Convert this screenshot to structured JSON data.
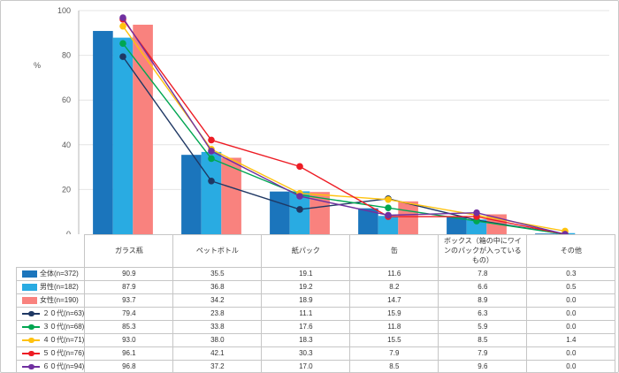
{
  "chart_data": {
    "type": "bar+line",
    "title": "",
    "ylabel": "%",
    "ylim": [
      0,
      100
    ],
    "yticks": [
      0,
      20,
      40,
      60,
      80,
      100
    ],
    "grid": true,
    "legend_position": "table-below-left",
    "categories": [
      "ガラス瓶",
      "ペットボトル",
      "紙パック",
      "缶",
      "ボックス（箱の中にワインのパックが入っているもの）",
      "その他"
    ],
    "bar_series": [
      {
        "name": "全体(n=372)",
        "color": "#1B75BC",
        "values": [
          90.9,
          35.5,
          19.1,
          11.6,
          7.8,
          0.3
        ]
      },
      {
        "name": "男性(n=182)",
        "color": "#29ABE2",
        "values": [
          87.9,
          36.8,
          19.2,
          8.2,
          6.6,
          0.5
        ]
      },
      {
        "name": "女性(n=190)",
        "color": "#F9827E",
        "values": [
          93.7,
          34.2,
          18.9,
          14.7,
          8.9,
          0.0
        ]
      }
    ],
    "line_series": [
      {
        "name": "２０代(n=63)",
        "color": "#1F3864",
        "values": [
          79.4,
          23.8,
          11.1,
          15.9,
          6.3,
          0.0
        ]
      },
      {
        "name": "３０代(n=68)",
        "color": "#00A651",
        "values": [
          85.3,
          33.8,
          17.6,
          11.8,
          5.9,
          0.0
        ]
      },
      {
        "name": "４０代(n=71)",
        "color": "#FFC20E",
        "values": [
          93.0,
          38.0,
          18.3,
          15.5,
          8.5,
          1.4
        ]
      },
      {
        "name": "５０代(n=76)",
        "color": "#ED1C24",
        "values": [
          96.1,
          42.1,
          30.3,
          7.9,
          7.9,
          0.0
        ]
      },
      {
        "name": "６０代(n=94)",
        "color": "#7030A0",
        "values": [
          96.8,
          37.2,
          17.0,
          8.5,
          9.6,
          0.0
        ]
      }
    ],
    "colors": {
      "grid": "#e4e4e4",
      "axis": "#b7b7b7",
      "tick_text": "#595959",
      "table_border": "#c6c6c6",
      "table_text": "#333333"
    }
  }
}
